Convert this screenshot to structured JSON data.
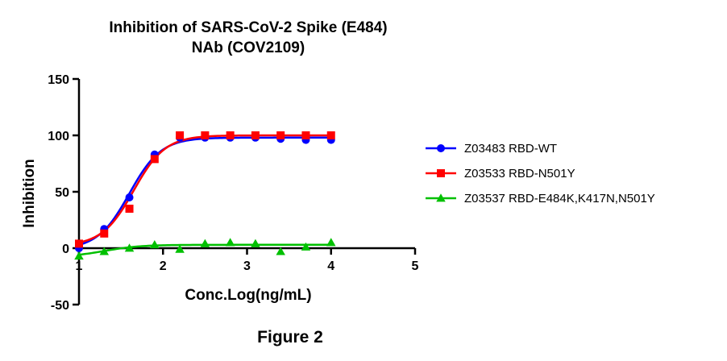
{
  "chart_data": {
    "type": "scatter",
    "title": "Inhibition of SARS-CoV-2 Spike (E484)",
    "subtitle": "NAb (COV2109)",
    "xlabel": "Conc.Log(ng/mL)",
    "ylabel": "Inhibition",
    "xlim": [
      1,
      5
    ],
    "ylim": [
      -50,
      150
    ],
    "xticks": [
      1,
      2,
      3,
      4,
      5
    ],
    "yticks": [
      -50,
      0,
      50,
      100,
      150
    ],
    "fit_curves": true,
    "legend_position": "right",
    "series": [
      {
        "name": "Z03483 RBD-WT",
        "color": "#0000ff",
        "marker": "circle",
        "x": [
          1.0,
          1.3,
          1.6,
          1.9,
          2.2,
          2.5,
          2.8,
          3.1,
          3.4,
          3.7,
          4.0
        ],
        "y": [
          0,
          17,
          45,
          83,
          98,
          98,
          98,
          98,
          97,
          96,
          96
        ],
        "fit": {
          "bottom": -1,
          "top": 98,
          "ec50": 1.6,
          "hill": 2.3
        }
      },
      {
        "name": "Z03533 RBD-N501Y",
        "color": "#ff0000",
        "marker": "square",
        "x": [
          1.0,
          1.3,
          1.6,
          1.9,
          2.2,
          2.5,
          2.8,
          3.1,
          3.4,
          3.7,
          4.0
        ],
        "y": [
          4,
          13,
          35,
          79,
          100,
          100,
          100,
          100,
          100,
          100,
          100
        ],
        "fit": {
          "bottom": 2,
          "top": 100,
          "ec50": 1.65,
          "hill": 2.3
        }
      },
      {
        "name": "Z03537 RBD-E484K,K417N,N501Y",
        "color": "#00c000",
        "marker": "triangle",
        "x": [
          1.0,
          1.3,
          1.6,
          1.9,
          2.2,
          2.5,
          2.8,
          3.1,
          3.4,
          3.7,
          4.0
        ],
        "y": [
          -7,
          -3,
          0,
          3,
          -1,
          4,
          5,
          4,
          -3,
          1,
          5
        ],
        "fit": {
          "bottom": -8,
          "top": 3,
          "ec50": 1.3,
          "hill": 2.0
        }
      }
    ]
  },
  "caption": "Figure 2"
}
